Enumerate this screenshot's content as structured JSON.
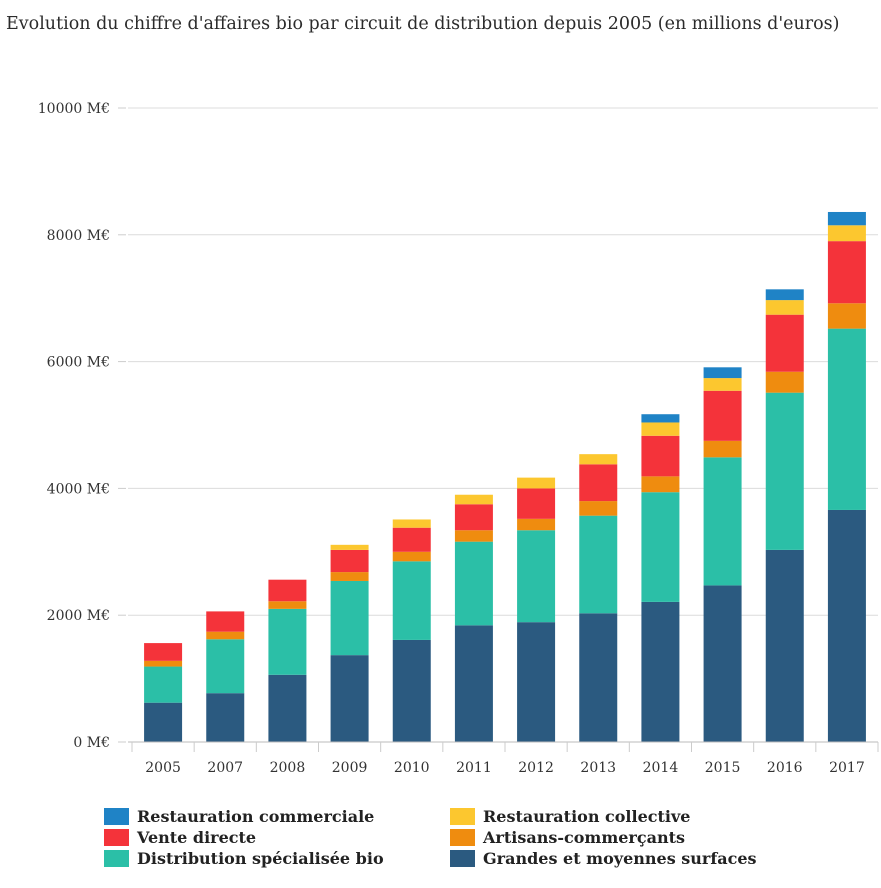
{
  "title": "Evolution du chiffre d'affaires bio par circuit de distribution depuis 2005 (en millions d'euros)",
  "colors": {
    "gms": "#2b5a80",
    "distrib": "#2bbfa7",
    "artisans": "#ef8c0f",
    "vente": "#f4333a",
    "collective": "#fcc72f",
    "commerciale": "#1f83c6"
  },
  "chart_data": {
    "type": "bar",
    "stacked": true,
    "title": "Evolution du chiffre d'affaires bio par circuit de distribution depuis 2005 (en millions d'euros)",
    "xlabel": "",
    "ylabel": "",
    "ylim": [
      0,
      10000
    ],
    "y_ticks": [
      0,
      2000,
      4000,
      6000,
      8000,
      10000
    ],
    "y_tick_labels": [
      "0 M€",
      "2000 M€",
      "4000 M€",
      "6000 M€",
      "8000 M€",
      "10000 M€"
    ],
    "grid": true,
    "legend_placement": "bottom",
    "categories": [
      "2005",
      "2007",
      "2008",
      "2009",
      "2010",
      "2011",
      "2012",
      "2013",
      "2014",
      "2015",
      "2016",
      "2017"
    ],
    "series": [
      {
        "key": "gms",
        "name": "Grandes et moyennes surfaces",
        "values": [
          620,
          770,
          1060,
          1370,
          1610,
          1840,
          1890,
          2030,
          2210,
          2470,
          3030,
          3660
        ]
      },
      {
        "key": "distrib",
        "name": "Distribution spécialisée bio",
        "values": [
          570,
          850,
          1040,
          1170,
          1240,
          1320,
          1450,
          1540,
          1730,
          2020,
          2480,
          2860
        ]
      },
      {
        "key": "artisans",
        "name": "Artisans-commerçants",
        "values": [
          90,
          120,
          120,
          140,
          150,
          180,
          180,
          230,
          250,
          260,
          330,
          400
        ]
      },
      {
        "key": "vente",
        "name": "Vente directe",
        "values": [
          280,
          320,
          340,
          350,
          380,
          410,
          480,
          580,
          640,
          790,
          900,
          980
        ]
      },
      {
        "key": "collective",
        "name": "Restauration collective",
        "values": [
          0,
          0,
          0,
          80,
          130,
          150,
          170,
          160,
          210,
          200,
          230,
          250
        ]
      },
      {
        "key": "commerciale",
        "name": "Restauration commerciale",
        "values": [
          0,
          0,
          0,
          0,
          0,
          0,
          0,
          0,
          130,
          170,
          170,
          210
        ]
      }
    ]
  },
  "legend": [
    {
      "key": "commerciale",
      "label": "Restauration commerciale"
    },
    {
      "key": "collective",
      "label": "Restauration collective"
    },
    {
      "key": "vente",
      "label": "Vente directe"
    },
    {
      "key": "artisans",
      "label": "Artisans-commerçants"
    },
    {
      "key": "distrib",
      "label": "Distribution spécialisée bio"
    },
    {
      "key": "gms",
      "label": "Grandes et moyennes surfaces"
    }
  ]
}
